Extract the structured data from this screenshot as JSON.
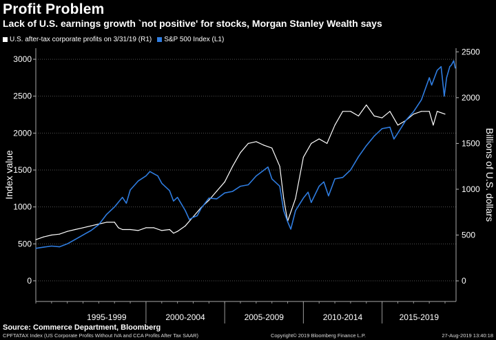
{
  "header": {
    "title": "Profit Problem",
    "subtitle": "Lack of U.S. earnings growth `not positive' for stocks, Morgan Stanley Wealth says"
  },
  "footer": {
    "source": "Source: Commerce Department, Bloomberg",
    "index_note": "CPFTATAX Index (US Corporate Profits Without IVA and CCA Profits After Tax SAAR)",
    "copyright": "Copyright© 2019 Bloomberg Finance L.P.",
    "timestamp": "27-Aug-2019 13:40:18"
  },
  "colors": {
    "background": "#000000",
    "profits": "#ffffff",
    "sp500": "#2f7de1",
    "grid": "#555555"
  },
  "chart_data": {
    "type": "line",
    "x_range": [
      1993.0,
      2019.7
    ],
    "x_tick_labels": [
      "1995-1999",
      "2000-2004",
      "2005-2009",
      "2010-2014",
      "2015-2019"
    ],
    "left_axis": {
      "label": "Index value",
      "ticks": [
        0,
        500,
        1000,
        1500,
        2000,
        2500,
        3000
      ],
      "range": [
        -280,
        3150
      ]
    },
    "right_axis": {
      "label": "Billions of U.S. dollars",
      "ticks": [
        0,
        500,
        1000,
        1500,
        2000,
        2500
      ],
      "range": [
        -225,
        2540
      ]
    },
    "series": [
      {
        "name": "U.S. after-tax corporate profits on 3/31/19 (R1)",
        "axis": "right",
        "color": "#ffffff",
        "x": [
          1993.0,
          1993.5,
          1994.0,
          1994.5,
          1995.0,
          1995.5,
          1996.0,
          1996.5,
          1997.0,
          1997.5,
          1998.0,
          1998.25,
          1998.5,
          1999.0,
          1999.5,
          2000.0,
          2000.5,
          2001.0,
          2001.5,
          2001.75,
          2002.0,
          2002.5,
          2003.0,
          2003.5,
          2004.0,
          2004.5,
          2005.0,
          2005.5,
          2006.0,
          2006.5,
          2007.0,
          2007.5,
          2008.0,
          2008.5,
          2008.75,
          2009.0,
          2009.5,
          2010.0,
          2010.5,
          2011.0,
          2011.5,
          2012.0,
          2012.5,
          2013.0,
          2013.5,
          2014.0,
          2014.5,
          2015.0,
          2015.5,
          2016.0,
          2016.5,
          2017.0,
          2017.5,
          2018.0,
          2018.25,
          2018.5,
          2019.0
        ],
        "values": [
          450,
          480,
          500,
          510,
          540,
          560,
          580,
          600,
          620,
          640,
          640,
          580,
          560,
          560,
          550,
          580,
          580,
          550,
          560,
          520,
          540,
          600,
          700,
          800,
          880,
          980,
          1080,
          1250,
          1400,
          1500,
          1520,
          1480,
          1450,
          1250,
          900,
          650,
          900,
          1350,
          1500,
          1550,
          1500,
          1700,
          1850,
          1850,
          1800,
          1920,
          1800,
          1780,
          1850,
          1700,
          1750,
          1820,
          1850,
          1850,
          1700,
          1850,
          1820
        ]
      },
      {
        "name": "S&P 500 Index (L1)",
        "axis": "left",
        "color": "#2f7de1",
        "x": [
          1993.0,
          1993.5,
          1994.0,
          1994.5,
          1995.0,
          1995.5,
          1996.0,
          1996.5,
          1997.0,
          1997.5,
          1998.0,
          1998.5,
          1998.75,
          1999.0,
          1999.5,
          2000.0,
          2000.25,
          2000.5,
          2000.75,
          2001.0,
          2001.5,
          2001.75,
          2002.0,
          2002.5,
          2002.75,
          2003.0,
          2003.25,
          2003.5,
          2004.0,
          2004.5,
          2005.0,
          2005.5,
          2006.0,
          2006.5,
          2007.0,
          2007.5,
          2007.75,
          2008.0,
          2008.5,
          2008.75,
          2009.0,
          2009.2,
          2009.5,
          2010.0,
          2010.3,
          2010.5,
          2011.0,
          2011.3,
          2011.6,
          2012.0,
          2012.5,
          2013.0,
          2013.5,
          2014.0,
          2014.5,
          2015.0,
          2015.5,
          2015.75,
          2016.0,
          2016.5,
          2017.0,
          2017.5,
          2018.0,
          2018.15,
          2018.5,
          2018.75,
          2018.95,
          2019.1,
          2019.3,
          2019.4,
          2019.55,
          2019.65
        ],
        "values": [
          440,
          455,
          470,
          460,
          500,
          560,
          620,
          680,
          760,
          900,
          1000,
          1130,
          1050,
          1230,
          1350,
          1420,
          1480,
          1450,
          1420,
          1320,
          1220,
          1080,
          1130,
          950,
          830,
          860,
          880,
          980,
          1120,
          1110,
          1190,
          1210,
          1280,
          1300,
          1420,
          1500,
          1540,
          1380,
          1280,
          950,
          800,
          700,
          950,
          1120,
          1200,
          1060,
          1280,
          1340,
          1150,
          1380,
          1400,
          1500,
          1680,
          1830,
          1960,
          2060,
          2080,
          1920,
          2000,
          2170,
          2290,
          2450,
          2750,
          2650,
          2850,
          2900,
          2500,
          2750,
          2900,
          2920,
          2980,
          2880
        ]
      }
    ],
    "grid": true
  }
}
